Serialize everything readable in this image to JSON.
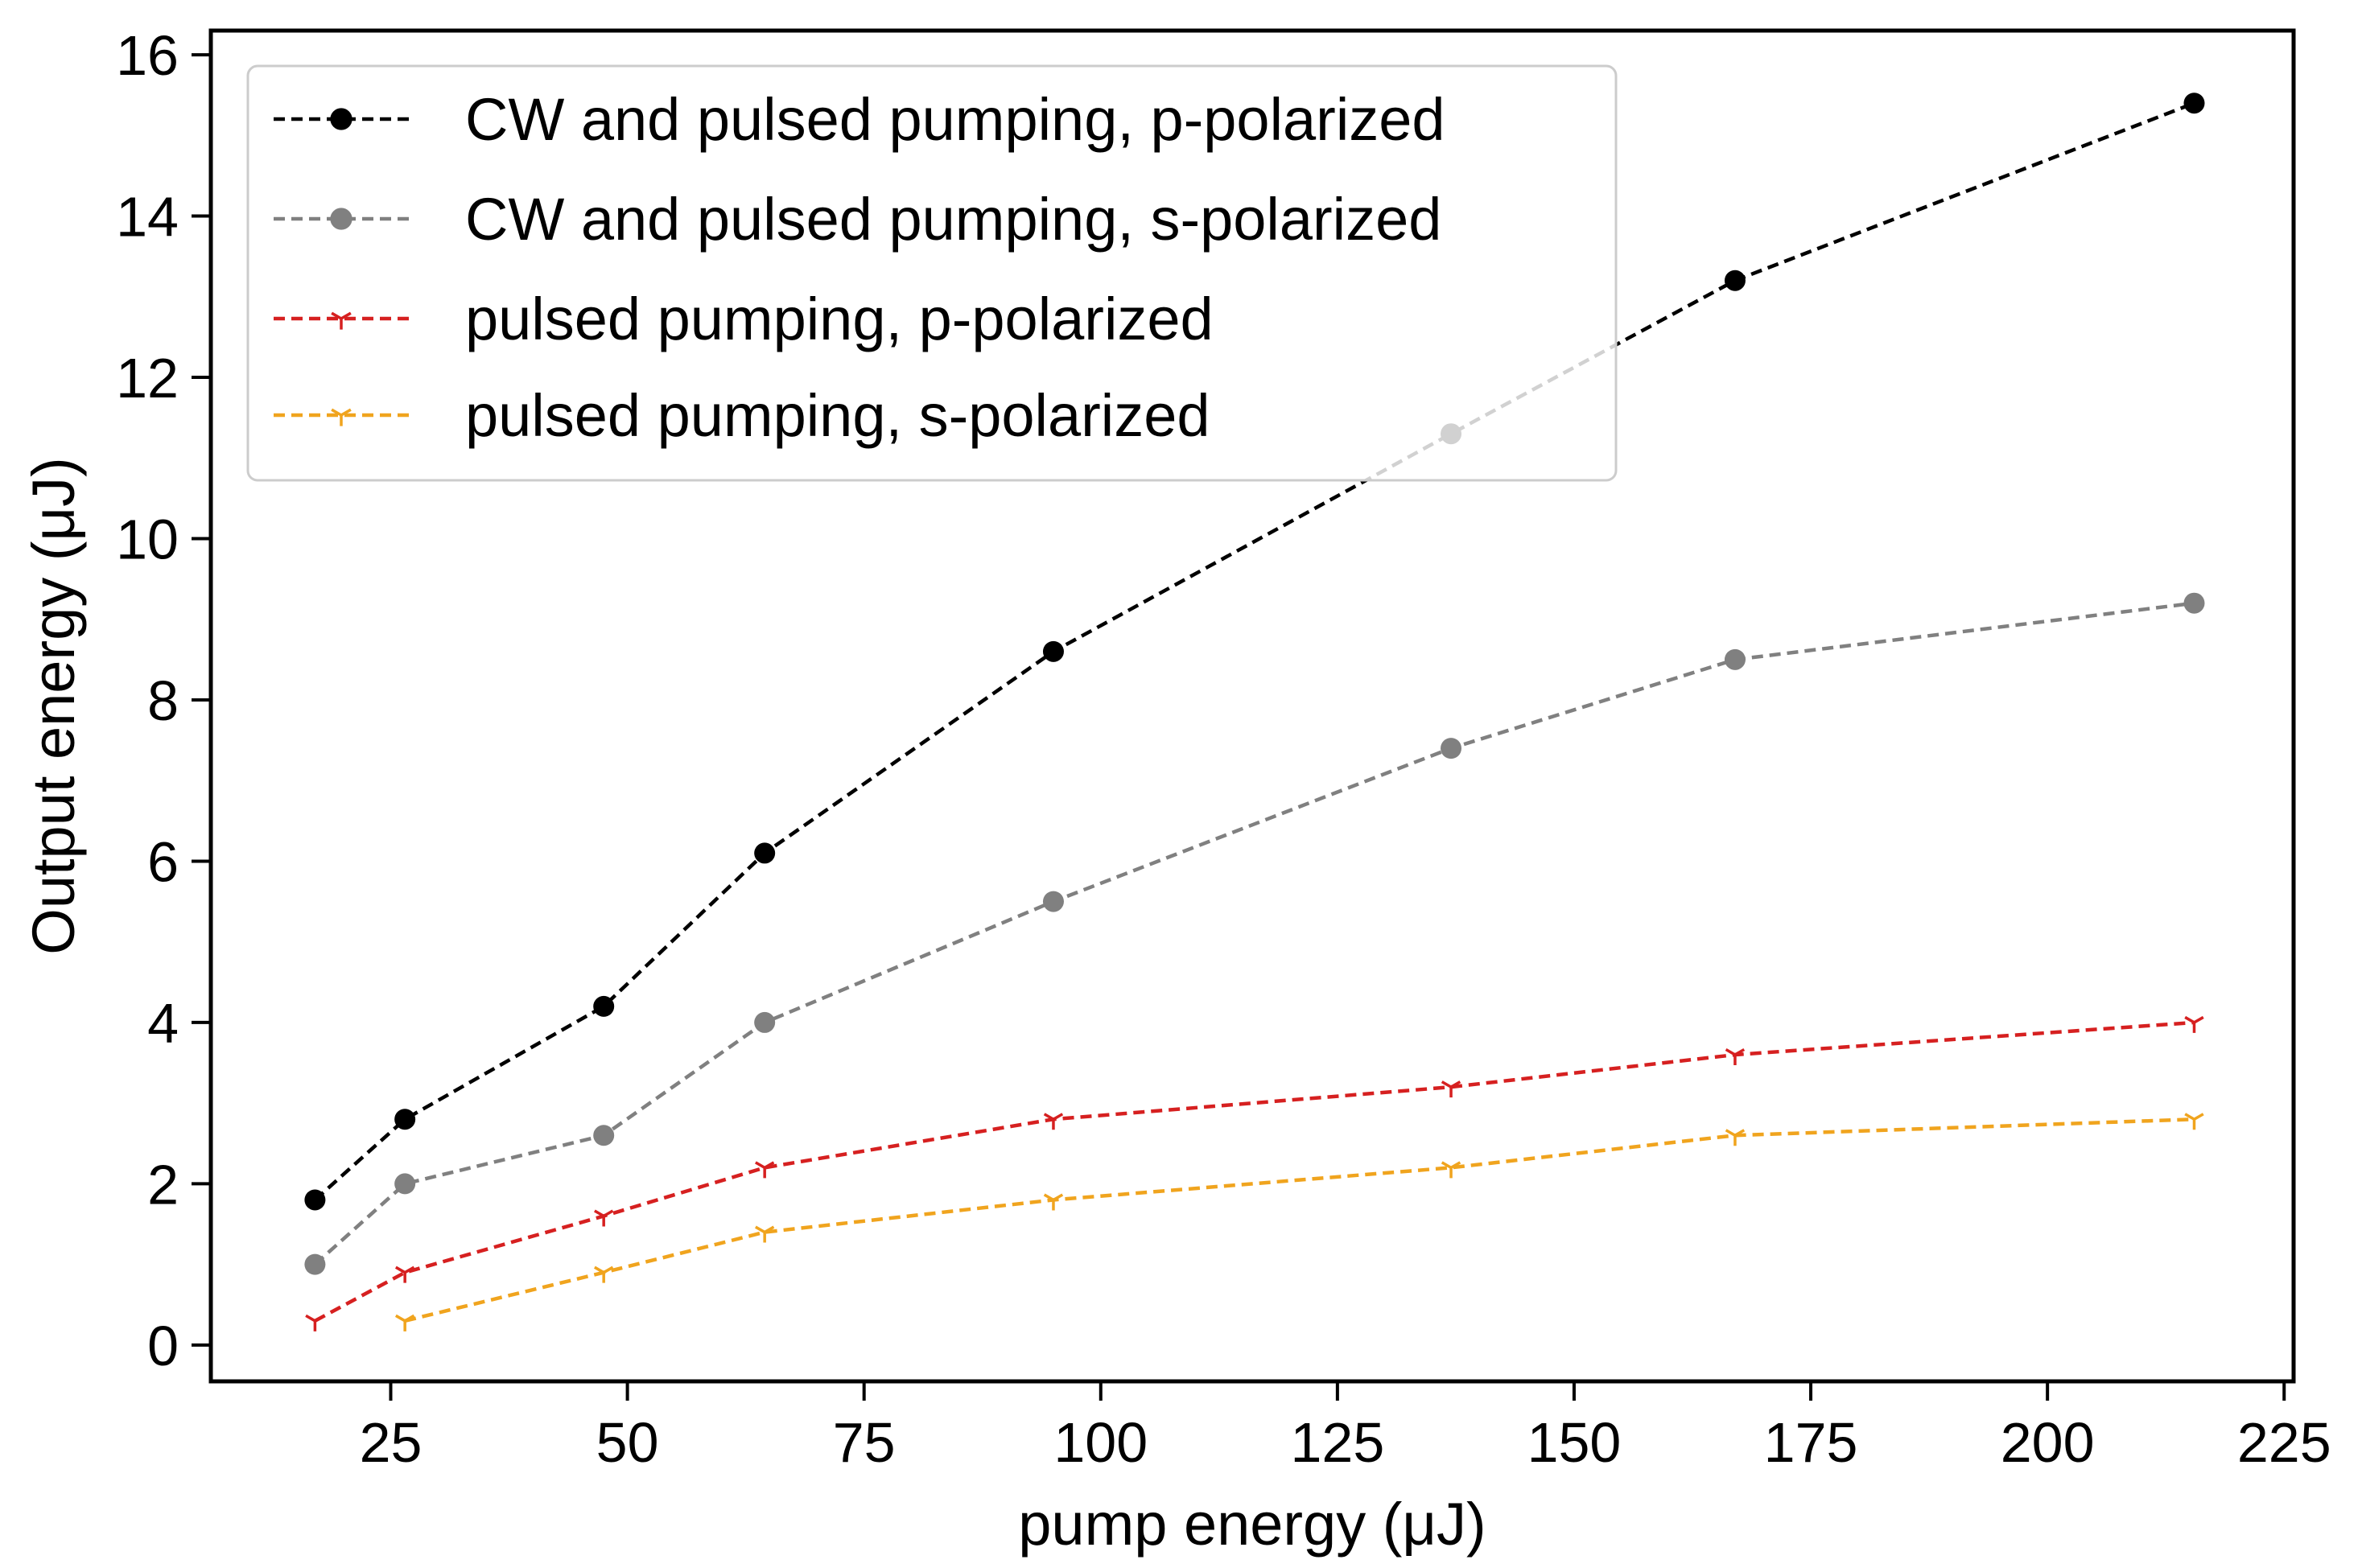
{
  "chart_data": {
    "type": "line",
    "title": "",
    "xlabel": "pump energy (μJ)",
    "ylabel": "Output energy (μJ)",
    "xlim": [
      6,
      226
    ],
    "ylim": [
      -0.45,
      16.3
    ],
    "xticks": [
      25,
      50,
      75,
      100,
      125,
      150,
      175,
      200,
      225
    ],
    "yticks": [
      0,
      2,
      4,
      6,
      8,
      10,
      12,
      14,
      16
    ],
    "grid": false,
    "legend_position": "top-left",
    "series": [
      {
        "name": "CW and pulsed pumping, p-polarized",
        "color": "#000000",
        "marker": "circle",
        "x": [
          17,
          26.5,
          47.5,
          64.5,
          95,
          137,
          167,
          215.5
        ],
        "y": [
          1.8,
          2.8,
          4.2,
          6.1,
          8.6,
          11.3,
          13.2,
          15.4
        ]
      },
      {
        "name": "CW and pulsed pumping, s-polarized",
        "color": "#808080",
        "marker": "circle",
        "x": [
          17,
          26.5,
          47.5,
          64.5,
          95,
          137,
          167,
          215.5
        ],
        "y": [
          1.0,
          2.0,
          2.6,
          4.0,
          5.5,
          7.4,
          8.5,
          9.2
        ]
      },
      {
        "name": "pulsed pumping, p-polarized",
        "color": "#d62020",
        "marker": "tri_down",
        "x": [
          17,
          26.5,
          47.5,
          64.5,
          95,
          137,
          167,
          215.5
        ],
        "y": [
          0.3,
          0.9,
          1.6,
          2.2,
          2.8,
          3.2,
          3.6,
          4.0
        ]
      },
      {
        "name": "pulsed pumping, s-polarized",
        "color": "#f0a41e",
        "marker": "tri_down",
        "x": [
          26.5,
          47.5,
          64.5,
          95,
          137,
          167,
          215.5
        ],
        "y": [
          0.3,
          0.9,
          1.4,
          1.8,
          2.2,
          2.6,
          2.8
        ]
      }
    ]
  }
}
